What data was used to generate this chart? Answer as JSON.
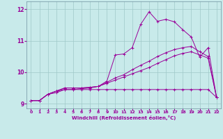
{
  "xlabel": "Windchill (Refroidissement éolien,°C)",
  "background_color": "#c8eaea",
  "grid_color": "#9fc8c8",
  "line_color": "#990099",
  "xlim": [
    -0.5,
    22.5
  ],
  "ylim": [
    8.85,
    12.25
  ],
  "xticks": [
    0,
    1,
    2,
    3,
    4,
    5,
    6,
    7,
    8,
    9,
    10,
    11,
    12,
    13,
    14,
    15,
    16,
    17,
    18,
    19,
    20,
    21,
    22
  ],
  "yticks": [
    9,
    10,
    11,
    12
  ],
  "s1_x": [
    0,
    1,
    2,
    3,
    4,
    5,
    6,
    7,
    8,
    9,
    10,
    11,
    12,
    13,
    14,
    15,
    16,
    17,
    18,
    19,
    20,
    21,
    22
  ],
  "s1_y": [
    9.1,
    9.1,
    9.3,
    9.4,
    9.45,
    9.45,
    9.45,
    9.45,
    9.45,
    9.45,
    9.45,
    9.45,
    9.45,
    9.45,
    9.45,
    9.45,
    9.45,
    9.45,
    9.45,
    9.45,
    9.45,
    9.45,
    9.2
  ],
  "s2_x": [
    0,
    1,
    2,
    3,
    4,
    5,
    6,
    7,
    8,
    9,
    10,
    11,
    12,
    13,
    14,
    15,
    16,
    17,
    18,
    19,
    20,
    21,
    22
  ],
  "s2_y": [
    9.1,
    9.1,
    9.3,
    9.35,
    9.45,
    9.45,
    9.48,
    9.5,
    9.55,
    9.65,
    9.75,
    9.85,
    9.95,
    10.05,
    10.15,
    10.28,
    10.4,
    10.52,
    10.6,
    10.65,
    10.55,
    10.45,
    9.2
  ],
  "s3_x": [
    0,
    1,
    2,
    3,
    4,
    5,
    6,
    7,
    8,
    9,
    10,
    11,
    12,
    13,
    14,
    15,
    16,
    17,
    18,
    19,
    20,
    21,
    22
  ],
  "s3_y": [
    9.1,
    9.1,
    9.3,
    9.4,
    9.5,
    9.5,
    9.5,
    9.52,
    9.55,
    9.68,
    9.82,
    9.92,
    10.08,
    10.22,
    10.35,
    10.5,
    10.62,
    10.72,
    10.78,
    10.82,
    10.65,
    10.5,
    9.2
  ],
  "s4_x": [
    0,
    1,
    2,
    3,
    4,
    5,
    6,
    7,
    8,
    9,
    10,
    11,
    12,
    13,
    14,
    15,
    16,
    17,
    18,
    19,
    20,
    21,
    22
  ],
  "s4_y": [
    9.1,
    9.1,
    9.3,
    9.4,
    9.5,
    9.5,
    9.5,
    9.52,
    9.55,
    9.72,
    10.55,
    10.58,
    10.78,
    11.52,
    11.92,
    11.62,
    11.68,
    11.6,
    11.35,
    11.12,
    10.48,
    10.78,
    9.2
  ]
}
